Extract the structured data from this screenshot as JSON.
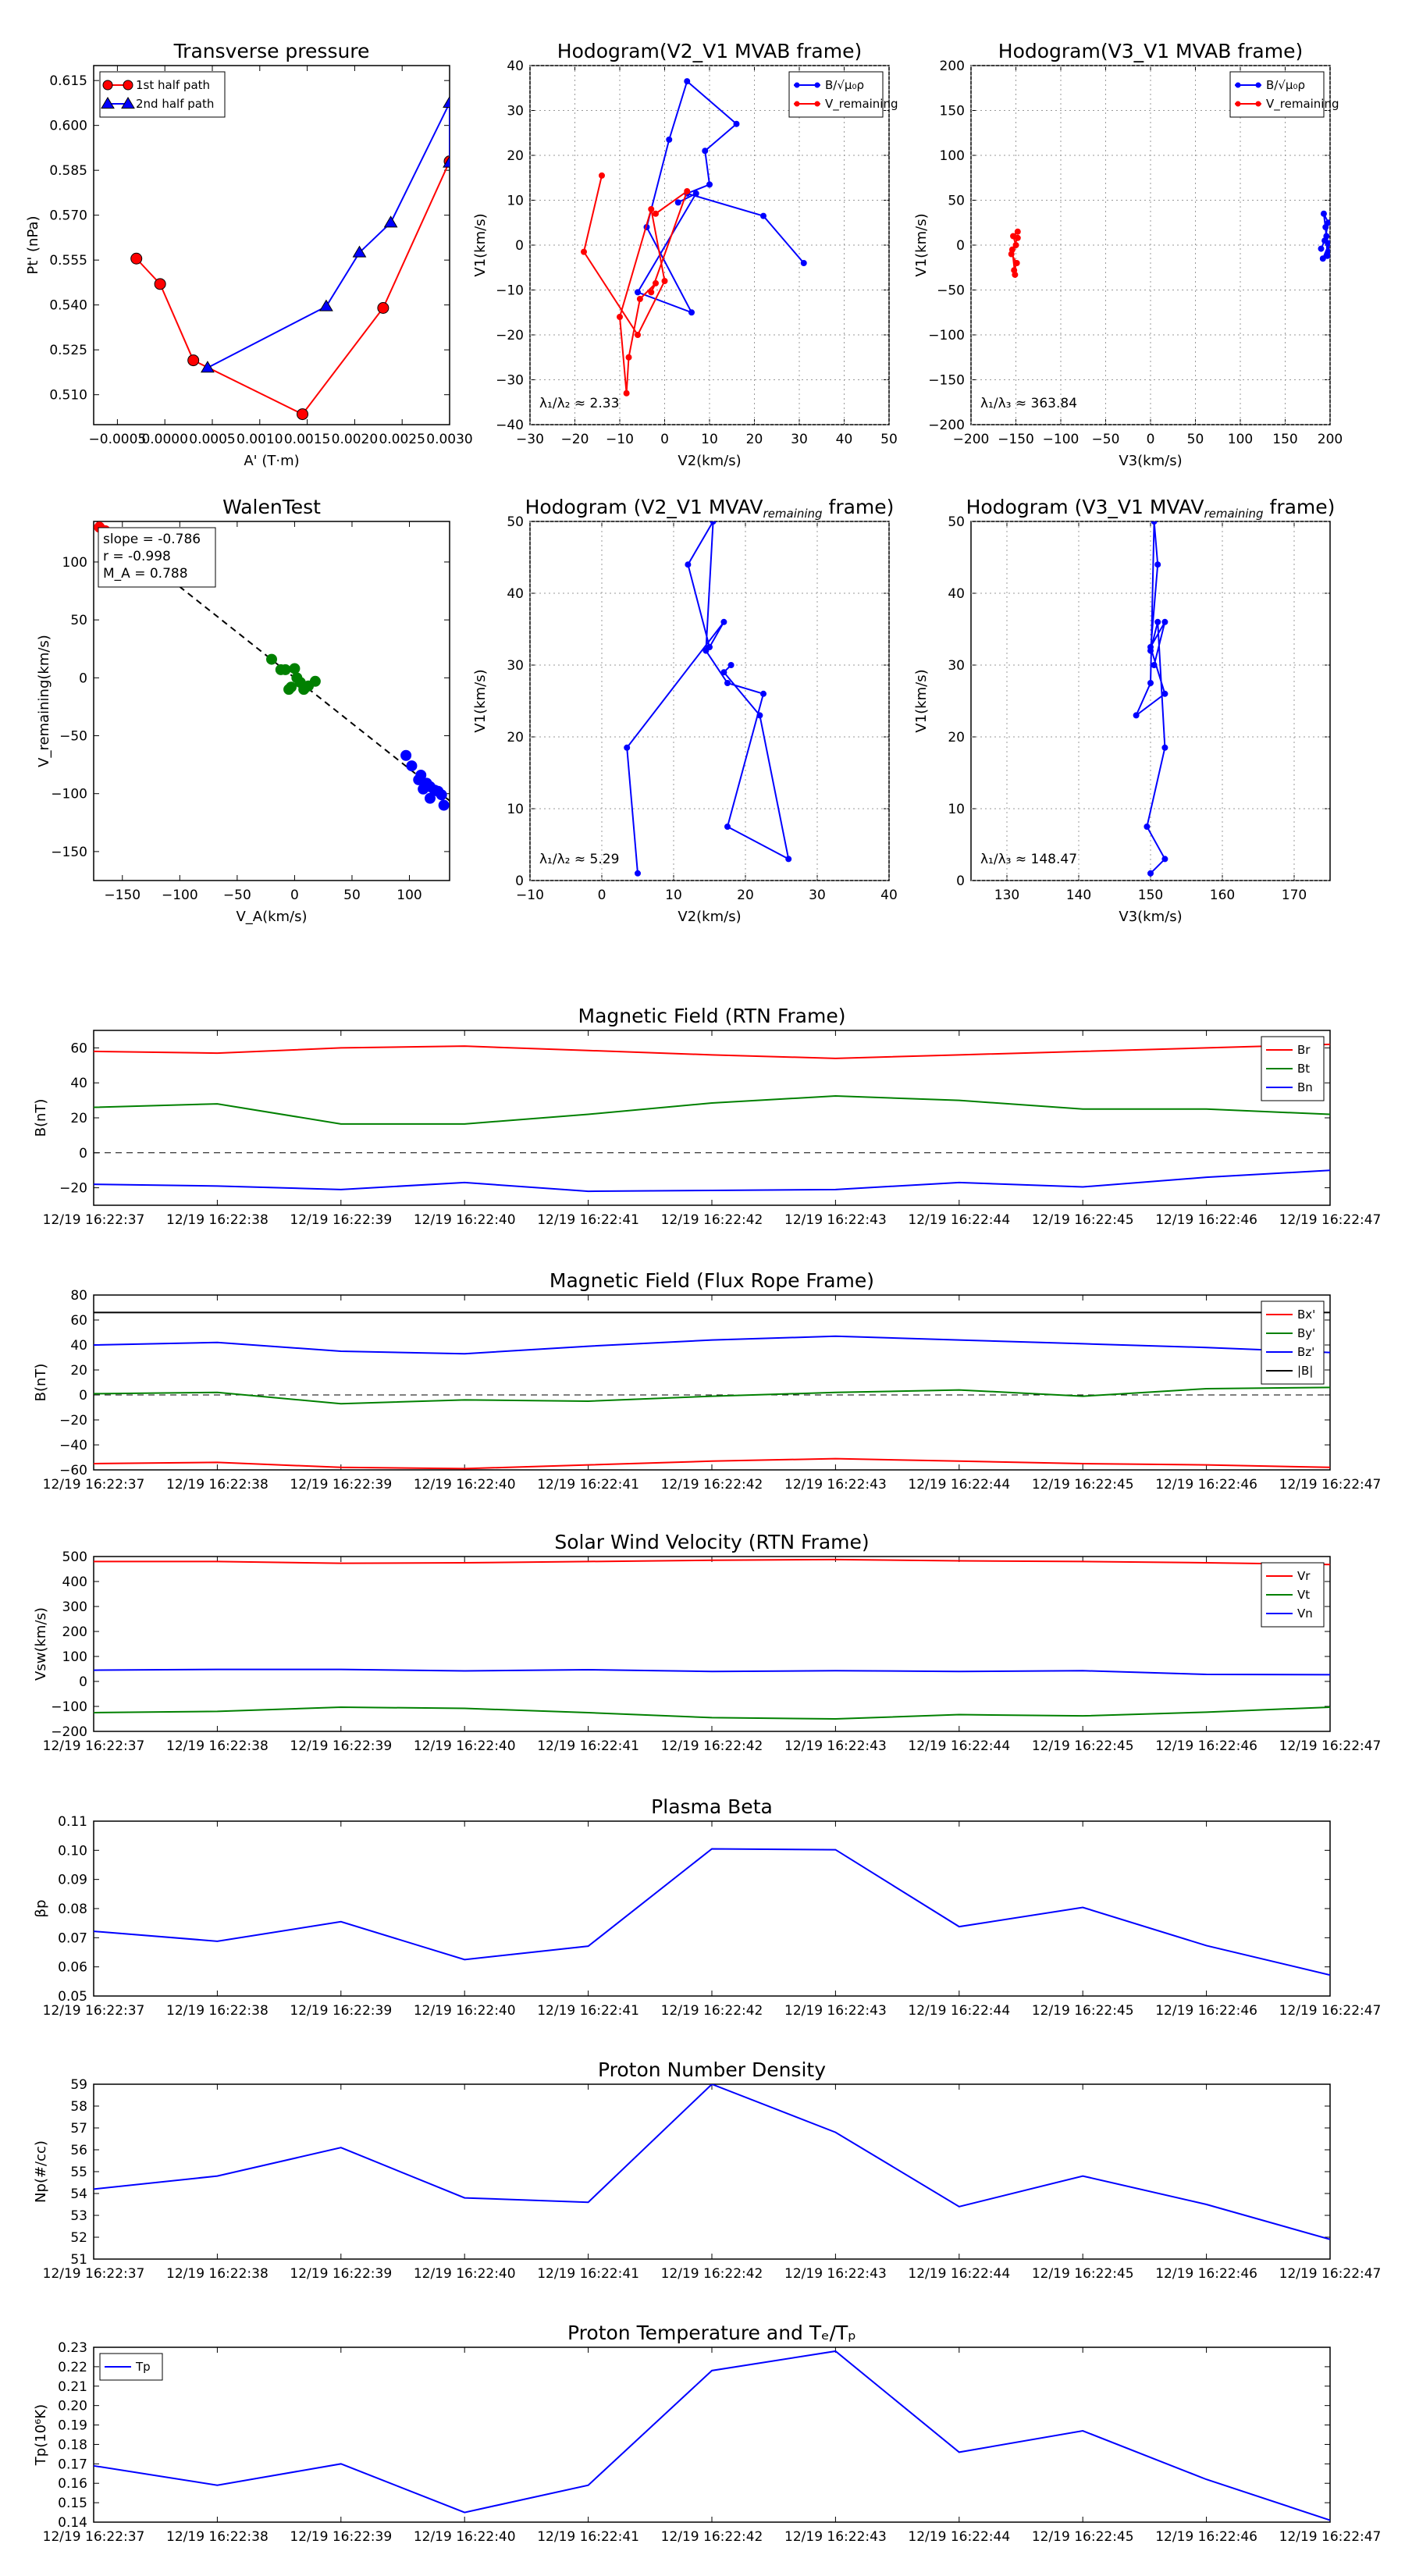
{
  "colors": {
    "red": "#ff0000",
    "green": "#008000",
    "blue": "#0000ff",
    "black": "#000000"
  },
  "chart_data": [
    {
      "id": "transverse-pressure",
      "type": "line",
      "title": "Transverse pressure",
      "xlabel": "A' (T·m)",
      "ylabel": "Pt' (nPa)",
      "xlim": [
        -0.00075,
        0.003
      ],
      "ylim": [
        0.5,
        0.62
      ],
      "xticks": [
        -0.0005,
        0,
        0.0005,
        0.001,
        0.0015,
        0.002,
        0.0025,
        0.003
      ],
      "xtick_labels": [
        "−0.0005",
        "0.0000",
        "0.0005",
        "0.0010",
        "0.0015",
        "0.0020",
        "0.0025",
        "0.0030"
      ],
      "yticks": [
        0.51,
        0.525,
        0.54,
        0.555,
        0.57,
        0.585,
        0.6,
        0.615
      ],
      "ytick_labels": [
        "0.510",
        "0.525",
        "0.540",
        "0.555",
        "0.570",
        "0.585",
        "0.600",
        "0.615"
      ],
      "legend": {
        "position": "top-left",
        "entries": [
          "1st half path",
          "2nd half path"
        ]
      },
      "series": [
        {
          "name": "1st half path",
          "color": "red",
          "marker": "circle",
          "x": [
            0.003,
            0.0023,
            0.00145,
            0.0003,
            -5e-05,
            -0.0003
          ],
          "y": [
            0.588,
            0.539,
            0.5035,
            0.5215,
            0.547,
            0.5555
          ]
        },
        {
          "name": "2nd half path",
          "color": "blue",
          "marker": "triangle",
          "x": [
            0.00045,
            0.0017,
            0.00205,
            0.00238,
            0.003,
            0.003
          ],
          "y": [
            0.519,
            0.5395,
            0.5575,
            0.5675,
            0.6075,
            0.5875
          ]
        }
      ]
    },
    {
      "id": "hodogram-v2-v1-mvab",
      "type": "line",
      "title": "Hodogram(V2_V1 MVAB frame)",
      "xlabel": "V2(km/s)",
      "ylabel": "V1(km/s)",
      "xlim": [
        -30,
        50
      ],
      "ylim": [
        -40,
        40
      ],
      "xticks": [
        -30,
        -20,
        -10,
        0,
        10,
        20,
        30,
        40,
        50
      ],
      "yticks": [
        -40,
        -30,
        -20,
        -10,
        0,
        10,
        20,
        30,
        40
      ],
      "grid": true,
      "legend": {
        "position": "top-right",
        "entries": [
          "B/√μ₀ρ",
          "V_remaining"
        ]
      },
      "annotation": "λ₁/λ₂ ≈ 2.33",
      "series": [
        {
          "name": "B/√μ₀ρ",
          "color": "blue",
          "x": [
            31,
            22,
            5,
            10,
            9,
            16,
            5,
            1,
            -4,
            6,
            -6,
            7,
            3
          ],
          "y": [
            -4,
            6.5,
            11.5,
            13.5,
            21,
            27,
            36.5,
            23.5,
            4,
            -15,
            -10.5,
            11.5,
            9.5
          ]
        },
        {
          "name": "V_remaining",
          "color": "red",
          "x": [
            -14,
            -18,
            -6,
            0,
            -3,
            -10,
            -8.5,
            -8,
            -5.5,
            -2,
            -3,
            5,
            -2
          ],
          "y": [
            15.5,
            -1.5,
            -20,
            -8,
            8,
            -16,
            -33,
            -25,
            -12,
            -8.5,
            -10.5,
            12,
            7
          ]
        }
      ]
    },
    {
      "id": "hodogram-v3-v1-mvab",
      "type": "line",
      "title": "Hodogram(V3_V1 MVAB frame)",
      "xlabel": "V3(km/s)",
      "ylabel": "V1(km/s)",
      "xlim": [
        -200,
        200
      ],
      "ylim": [
        -200,
        200
      ],
      "xticks": [
        -200,
        -150,
        -100,
        -50,
        0,
        50,
        100,
        150,
        200
      ],
      "yticks": [
        -200,
        -150,
        -100,
        -50,
        0,
        50,
        100,
        150,
        200
      ],
      "grid": true,
      "legend": {
        "position": "top-right",
        "entries": [
          "B/√μ₀ρ",
          "V_remaining"
        ]
      },
      "annotation": "λ₁/λ₃ ≈ 363.84",
      "series": [
        {
          "name": "B/√μ₀ρ",
          "color": "blue",
          "x": [
            190,
            196,
            193,
            198,
            194,
            199,
            195,
            197,
            192,
            199
          ],
          "y": [
            -4,
            10,
            35,
            25,
            5,
            -8,
            20,
            -12,
            -15,
            2
          ]
        },
        {
          "name": "V_remaining",
          "color": "red",
          "x": [
            -148,
            -153,
            -150,
            -155,
            -149,
            -152,
            -151,
            -154,
            -148
          ],
          "y": [
            15,
            10,
            0,
            -10,
            -20,
            -28,
            -33,
            -5,
            8
          ]
        }
      ]
    },
    {
      "id": "walen-test",
      "type": "scatter",
      "title": "WalenTest",
      "xlabel": "V_A(km/s)",
      "ylabel": "V_remaining(km/s)",
      "xlim": [
        -175,
        135
      ],
      "ylim": [
        -175,
        135
      ],
      "xticks": [
        -150,
        -100,
        -50,
        0,
        50,
        100
      ],
      "yticks": [
        -150,
        -100,
        -50,
        0,
        50,
        100
      ],
      "stats": [
        "slope = -0.786",
        "r = -0.998",
        "M_A = 0.788"
      ],
      "fit_slope": -0.786,
      "series": [
        {
          "name": "red",
          "color": "red",
          "x": [
            -170,
            -165
          ],
          "y": [
            130,
            127
          ]
        },
        {
          "name": "green",
          "color": "green",
          "x": [
            -20,
            -12,
            -8,
            0,
            2,
            -3,
            5,
            10,
            18,
            8,
            12,
            -5
          ],
          "y": [
            16,
            7,
            7,
            8,
            0,
            -8,
            -4,
            -8,
            -3,
            -10,
            -7,
            -10
          ]
        },
        {
          "name": "blue",
          "color": "blue",
          "x": [
            97,
            102,
            110,
            115,
            118,
            122,
            125,
            128,
            112,
            118,
            130,
            108
          ],
          "y": [
            -67,
            -76,
            -84,
            -91,
            -94,
            -97,
            -98,
            -101,
            -96,
            -104,
            -110,
            -88
          ]
        }
      ]
    },
    {
      "id": "hodogram-v2-v1-mvav",
      "type": "line",
      "title": "Hodogram (V2_V1 MVAV",
      "title_sub": "remaining",
      "title_end": " frame)",
      "xlabel": "V2(km/s)",
      "ylabel": "V1(km/s)",
      "xlim": [
        -10,
        40
      ],
      "ylim": [
        0,
        50
      ],
      "xticks": [
        -10,
        0,
        10,
        20,
        30,
        40
      ],
      "yticks": [
        0,
        10,
        20,
        30,
        40,
        50
      ],
      "grid": true,
      "annotation": "λ₁/λ₂ ≈ 5.29",
      "series": [
        {
          "name": "trace",
          "color": "blue",
          "x": [
            5,
            3.5,
            17,
            15,
            12,
            15.5,
            14.5,
            17.5,
            22.5,
            17.5,
            26,
            22,
            17,
            18
          ],
          "y": [
            1,
            18.5,
            36,
            32.5,
            44,
            50,
            32,
            27.5,
            26,
            7.5,
            3,
            23,
            29,
            30
          ]
        }
      ]
    },
    {
      "id": "hodogram-v3-v1-mvav",
      "type": "line",
      "title": "Hodogram (V3_V1 MVAV",
      "title_sub": "remaining",
      "title_end": " frame)",
      "xlabel": "V3(km/s)",
      "ylabel": "V1(km/s)",
      "xlim": [
        125,
        175
      ],
      "ylim": [
        0,
        50
      ],
      "xticks": [
        130,
        140,
        150,
        160,
        170
      ],
      "yticks": [
        0,
        10,
        20,
        30,
        40,
        50
      ],
      "grid": true,
      "annotation": "λ₁/λ₃ ≈ 148.47",
      "series": [
        {
          "name": "trace",
          "color": "blue",
          "x": [
            150,
            152,
            149.5,
            152,
            151,
            150,
            151,
            150.5,
            150,
            148,
            152,
            150,
            152,
            150.5
          ],
          "y": [
            1,
            3,
            7.5,
            18.5,
            36,
            32,
            44,
            50,
            27.5,
            23,
            26,
            32.5,
            36,
            30
          ]
        }
      ]
    },
    {
      "id": "magnetic-field-rtn",
      "type": "line",
      "title": "Magnetic Field (RTN Frame)",
      "ylabel": "B(nT)",
      "categories": [
        "12/19 16:22:37",
        "12/19 16:22:38",
        "12/19 16:22:39",
        "12/19 16:22:40",
        "12/19 16:22:41",
        "12/19 16:22:42",
        "12/19 16:22:43",
        "12/19 16:22:44",
        "12/19 16:22:45",
        "12/19 16:22:46",
        "12/19 16:22:47"
      ],
      "ylim": [
        -30,
        70
      ],
      "yticks": [
        -20,
        0,
        20,
        40,
        60
      ],
      "zero_line": true,
      "legend": {
        "position": "top-right",
        "entries": [
          "Br",
          "Bt",
          "Bn"
        ]
      },
      "series": [
        {
          "name": "Br",
          "color": "red",
          "values": [
            58,
            57,
            60,
            61,
            58.5,
            56,
            54,
            56,
            58,
            60,
            62
          ]
        },
        {
          "name": "Bt",
          "color": "green",
          "values": [
            26,
            28,
            16.5,
            16.5,
            22,
            28.5,
            32.5,
            30,
            25,
            25,
            22
          ]
        },
        {
          "name": "Bn",
          "color": "blue",
          "values": [
            -18,
            -19,
            -21,
            -17,
            -22,
            -21.5,
            -21,
            -17,
            -19.5,
            -14,
            -10
          ]
        }
      ]
    },
    {
      "id": "magnetic-field-flux-rope",
      "type": "line",
      "title": "Magnetic Field (Flux Rope Frame)",
      "ylabel": "B(nT)",
      "categories": [
        "12/19 16:22:37",
        "12/19 16:22:38",
        "12/19 16:22:39",
        "12/19 16:22:40",
        "12/19 16:22:41",
        "12/19 16:22:42",
        "12/19 16:22:43",
        "12/19 16:22:44",
        "12/19 16:22:45",
        "12/19 16:22:46",
        "12/19 16:22:47"
      ],
      "ylim": [
        -60,
        80
      ],
      "yticks": [
        -60,
        -40,
        -20,
        0,
        20,
        40,
        60,
        80
      ],
      "zero_line": true,
      "legend": {
        "position": "top-right",
        "entries": [
          "Bx'",
          "By'",
          "Bz'",
          "|B|"
        ]
      },
      "series": [
        {
          "name": "Bx'",
          "color": "red",
          "values": [
            -55,
            -54,
            -58,
            -59,
            -56,
            -53,
            -51,
            -53,
            -55,
            -56,
            -58
          ]
        },
        {
          "name": "By'",
          "color": "green",
          "values": [
            1,
            2,
            -7,
            -4,
            -5,
            -1,
            2,
            4,
            -1,
            5,
            6
          ]
        },
        {
          "name": "Bz'",
          "color": "blue",
          "values": [
            40,
            42,
            35,
            33,
            39,
            44,
            47,
            44,
            41,
            38,
            34
          ]
        },
        {
          "name": "|B|",
          "color": "black",
          "values": [
            66,
            66,
            66,
            66,
            66,
            66,
            66,
            66,
            66,
            66,
            66
          ]
        }
      ]
    },
    {
      "id": "solar-wind-velocity",
      "type": "line",
      "title": "Solar Wind Velocity (RTN Frame)",
      "ylabel": "Vsw(km/s)",
      "categories": [
        "12/19 16:22:37",
        "12/19 16:22:38",
        "12/19 16:22:39",
        "12/19 16:22:40",
        "12/19 16:22:41",
        "12/19 16:22:42",
        "12/19 16:22:43",
        "12/19 16:22:44",
        "12/19 16:22:45",
        "12/19 16:22:46",
        "12/19 16:22:47"
      ],
      "ylim": [
        -200,
        500
      ],
      "yticks": [
        -200,
        -100,
        0,
        100,
        200,
        300,
        400,
        500
      ],
      "legend": {
        "position": "top-right",
        "entries": [
          "Vr",
          "Vt",
          "Vn"
        ]
      },
      "series": [
        {
          "name": "Vr",
          "color": "red",
          "values": [
            480,
            480,
            473,
            475,
            480,
            485,
            488,
            483,
            480,
            475,
            468
          ]
        },
        {
          "name": "Vt",
          "color": "green",
          "values": [
            -125,
            -120,
            -103,
            -108,
            -125,
            -145,
            -150,
            -133,
            -138,
            -123,
            -103
          ]
        },
        {
          "name": "Vn",
          "color": "blue",
          "values": [
            45,
            48,
            48,
            42,
            47,
            40,
            43,
            40,
            43,
            28,
            27
          ]
        }
      ]
    },
    {
      "id": "plasma-beta",
      "type": "line",
      "title": "Plasma Beta",
      "ylabel": "βp",
      "categories": [
        "12/19 16:22:37",
        "12/19 16:22:38",
        "12/19 16:22:39",
        "12/19 16:22:40",
        "12/19 16:22:41",
        "12/19 16:22:42",
        "12/19 16:22:43",
        "12/19 16:22:44",
        "12/19 16:22:45",
        "12/19 16:22:46",
        "12/19 16:22:47"
      ],
      "ylim": [
        0.05,
        0.11
      ],
      "yticks": [
        0.05,
        0.06,
        0.07,
        0.08,
        0.09,
        0.1,
        0.11
      ],
      "ytick_labels": [
        "0.05",
        "0.06",
        "0.07",
        "0.08",
        "0.09",
        "0.10",
        "0.11"
      ],
      "series": [
        {
          "name": "beta",
          "color": "blue",
          "values": [
            0.0722,
            0.0688,
            0.0755,
            0.0625,
            0.0671,
            0.1005,
            0.1002,
            0.0738,
            0.0804,
            0.0673,
            0.0572
          ]
        }
      ]
    },
    {
      "id": "proton-number-density",
      "type": "line",
      "title": "Proton Number Density",
      "ylabel": "Np(#/cc)",
      "categories": [
        "12/19 16:22:37",
        "12/19 16:22:38",
        "12/19 16:22:39",
        "12/19 16:22:40",
        "12/19 16:22:41",
        "12/19 16:22:42",
        "12/19 16:22:43",
        "12/19 16:22:44",
        "12/19 16:22:45",
        "12/19 16:22:46",
        "12/19 16:22:47"
      ],
      "ylim": [
        51,
        59
      ],
      "yticks": [
        51,
        52,
        53,
        54,
        55,
        56,
        57,
        58,
        59
      ],
      "series": [
        {
          "name": "Np",
          "color": "blue",
          "values": [
            54.2,
            54.8,
            56.1,
            53.8,
            53.6,
            59.0,
            56.8,
            53.4,
            54.8,
            53.5,
            51.9
          ]
        }
      ]
    },
    {
      "id": "proton-temperature",
      "type": "line",
      "title": "Proton Temperature and Tₑ/Tₚ",
      "ylabel": "Tp(10⁶K)",
      "categories": [
        "12/19 16:22:37",
        "12/19 16:22:38",
        "12/19 16:22:39",
        "12/19 16:22:40",
        "12/19 16:22:41",
        "12/19 16:22:42",
        "12/19 16:22:43",
        "12/19 16:22:44",
        "12/19 16:22:45",
        "12/19 16:22:46",
        "12/19 16:22:47"
      ],
      "ylim": [
        0.14,
        0.23
      ],
      "yticks": [
        0.14,
        0.15,
        0.16,
        0.17,
        0.18,
        0.19,
        0.2,
        0.21,
        0.22,
        0.23
      ],
      "ytick_labels": [
        "0.14",
        "0.15",
        "0.16",
        "0.17",
        "0.18",
        "0.19",
        "0.20",
        "0.21",
        "0.22",
        "0.23"
      ],
      "legend": {
        "position": "top-left",
        "entries": [
          "Tp"
        ]
      },
      "series": [
        {
          "name": "Tp",
          "color": "blue",
          "values": [
            0.169,
            0.159,
            0.17,
            0.145,
            0.159,
            0.218,
            0.228,
            0.176,
            0.187,
            0.162,
            0.141
          ]
        }
      ]
    }
  ]
}
